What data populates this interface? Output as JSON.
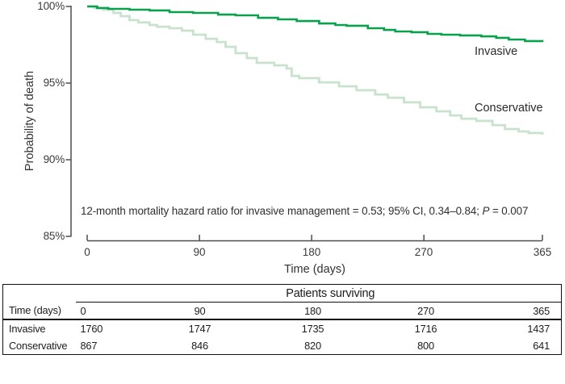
{
  "chart_data": {
    "type": "line",
    "subtype": "kaplan_meier_step",
    "title": "",
    "xlabel": "Time (days)",
    "ylabel": "Probability of death",
    "xlim": [
      0,
      365
    ],
    "ylim": [
      85,
      100
    ],
    "xticks": [
      "0",
      "90",
      "180",
      "270",
      "365"
    ],
    "yticks": [
      "100%",
      "95%",
      "90%",
      "85%"
    ],
    "grid": false,
    "legend_position": "inline-right",
    "annotation": {
      "text_before": "12-month mortality hazard ratio for invasive management = 0.53; 95% CI, 0.34–0.84; ",
      "p_symbol": "P",
      "p_rest": " = 0.007"
    },
    "series": [
      {
        "name": "Conservative",
        "color": "#c8e2cd",
        "points": [
          [
            0,
            100
          ],
          [
            6,
            99.89
          ],
          [
            13,
            99.79
          ],
          [
            21,
            99.58
          ],
          [
            27,
            99.37
          ],
          [
            34,
            99.11
          ],
          [
            41,
            98.95
          ],
          [
            50,
            98.79
          ],
          [
            56,
            98.68
          ],
          [
            66,
            98.58
          ],
          [
            76,
            98.42
          ],
          [
            85,
            98.16
          ],
          [
            95,
            97.89
          ],
          [
            104,
            97.68
          ],
          [
            111,
            97.37
          ],
          [
            119,
            96.95
          ],
          [
            128,
            96.63
          ],
          [
            136,
            96.32
          ],
          [
            150,
            96.16
          ],
          [
            160,
            95.95
          ],
          [
            164,
            95.47
          ],
          [
            170,
            95.32
          ],
          [
            186,
            95.05
          ],
          [
            202,
            94.79
          ],
          [
            216,
            94.53
          ],
          [
            231,
            94.26
          ],
          [
            241,
            94.05
          ],
          [
            254,
            93.74
          ],
          [
            267,
            93.42
          ],
          [
            280,
            93.16
          ],
          [
            291,
            92.89
          ],
          [
            300,
            92.68
          ],
          [
            312,
            92.53
          ],
          [
            325,
            92.26
          ],
          [
            335,
            92.0
          ],
          [
            346,
            91.84
          ],
          [
            354,
            91.74
          ],
          [
            365,
            91.63
          ]
        ]
      },
      {
        "name": "Invasive",
        "color": "#0aa14e",
        "points": [
          [
            0,
            100
          ],
          [
            8,
            99.9
          ],
          [
            17,
            99.84
          ],
          [
            34,
            99.79
          ],
          [
            50,
            99.74
          ],
          [
            66,
            99.63
          ],
          [
            85,
            99.58
          ],
          [
            105,
            99.47
          ],
          [
            119,
            99.42
          ],
          [
            137,
            99.26
          ],
          [
            153,
            99.16
          ],
          [
            168,
            99.05
          ],
          [
            186,
            98.89
          ],
          [
            199,
            98.79
          ],
          [
            208,
            98.74
          ],
          [
            225,
            98.58
          ],
          [
            238,
            98.47
          ],
          [
            247,
            98.37
          ],
          [
            260,
            98.32
          ],
          [
            273,
            98.21
          ],
          [
            284,
            98.16
          ],
          [
            299,
            98.11
          ],
          [
            316,
            98.05
          ],
          [
            328,
            97.95
          ],
          [
            338,
            97.84
          ],
          [
            351,
            97.74
          ],
          [
            365,
            97.68
          ]
        ]
      }
    ]
  },
  "table": {
    "title": "Patients surviving",
    "row_header_label": "Time (days)",
    "time_columns": [
      "0",
      "90",
      "180",
      "270",
      "365"
    ],
    "rows": [
      {
        "label": "Invasive",
        "values": [
          "1760",
          "1747",
          "1735",
          "1716",
          "1437"
        ]
      },
      {
        "label": "Conservative",
        "values": [
          "867",
          "846",
          "820",
          "800",
          "641"
        ]
      }
    ]
  }
}
